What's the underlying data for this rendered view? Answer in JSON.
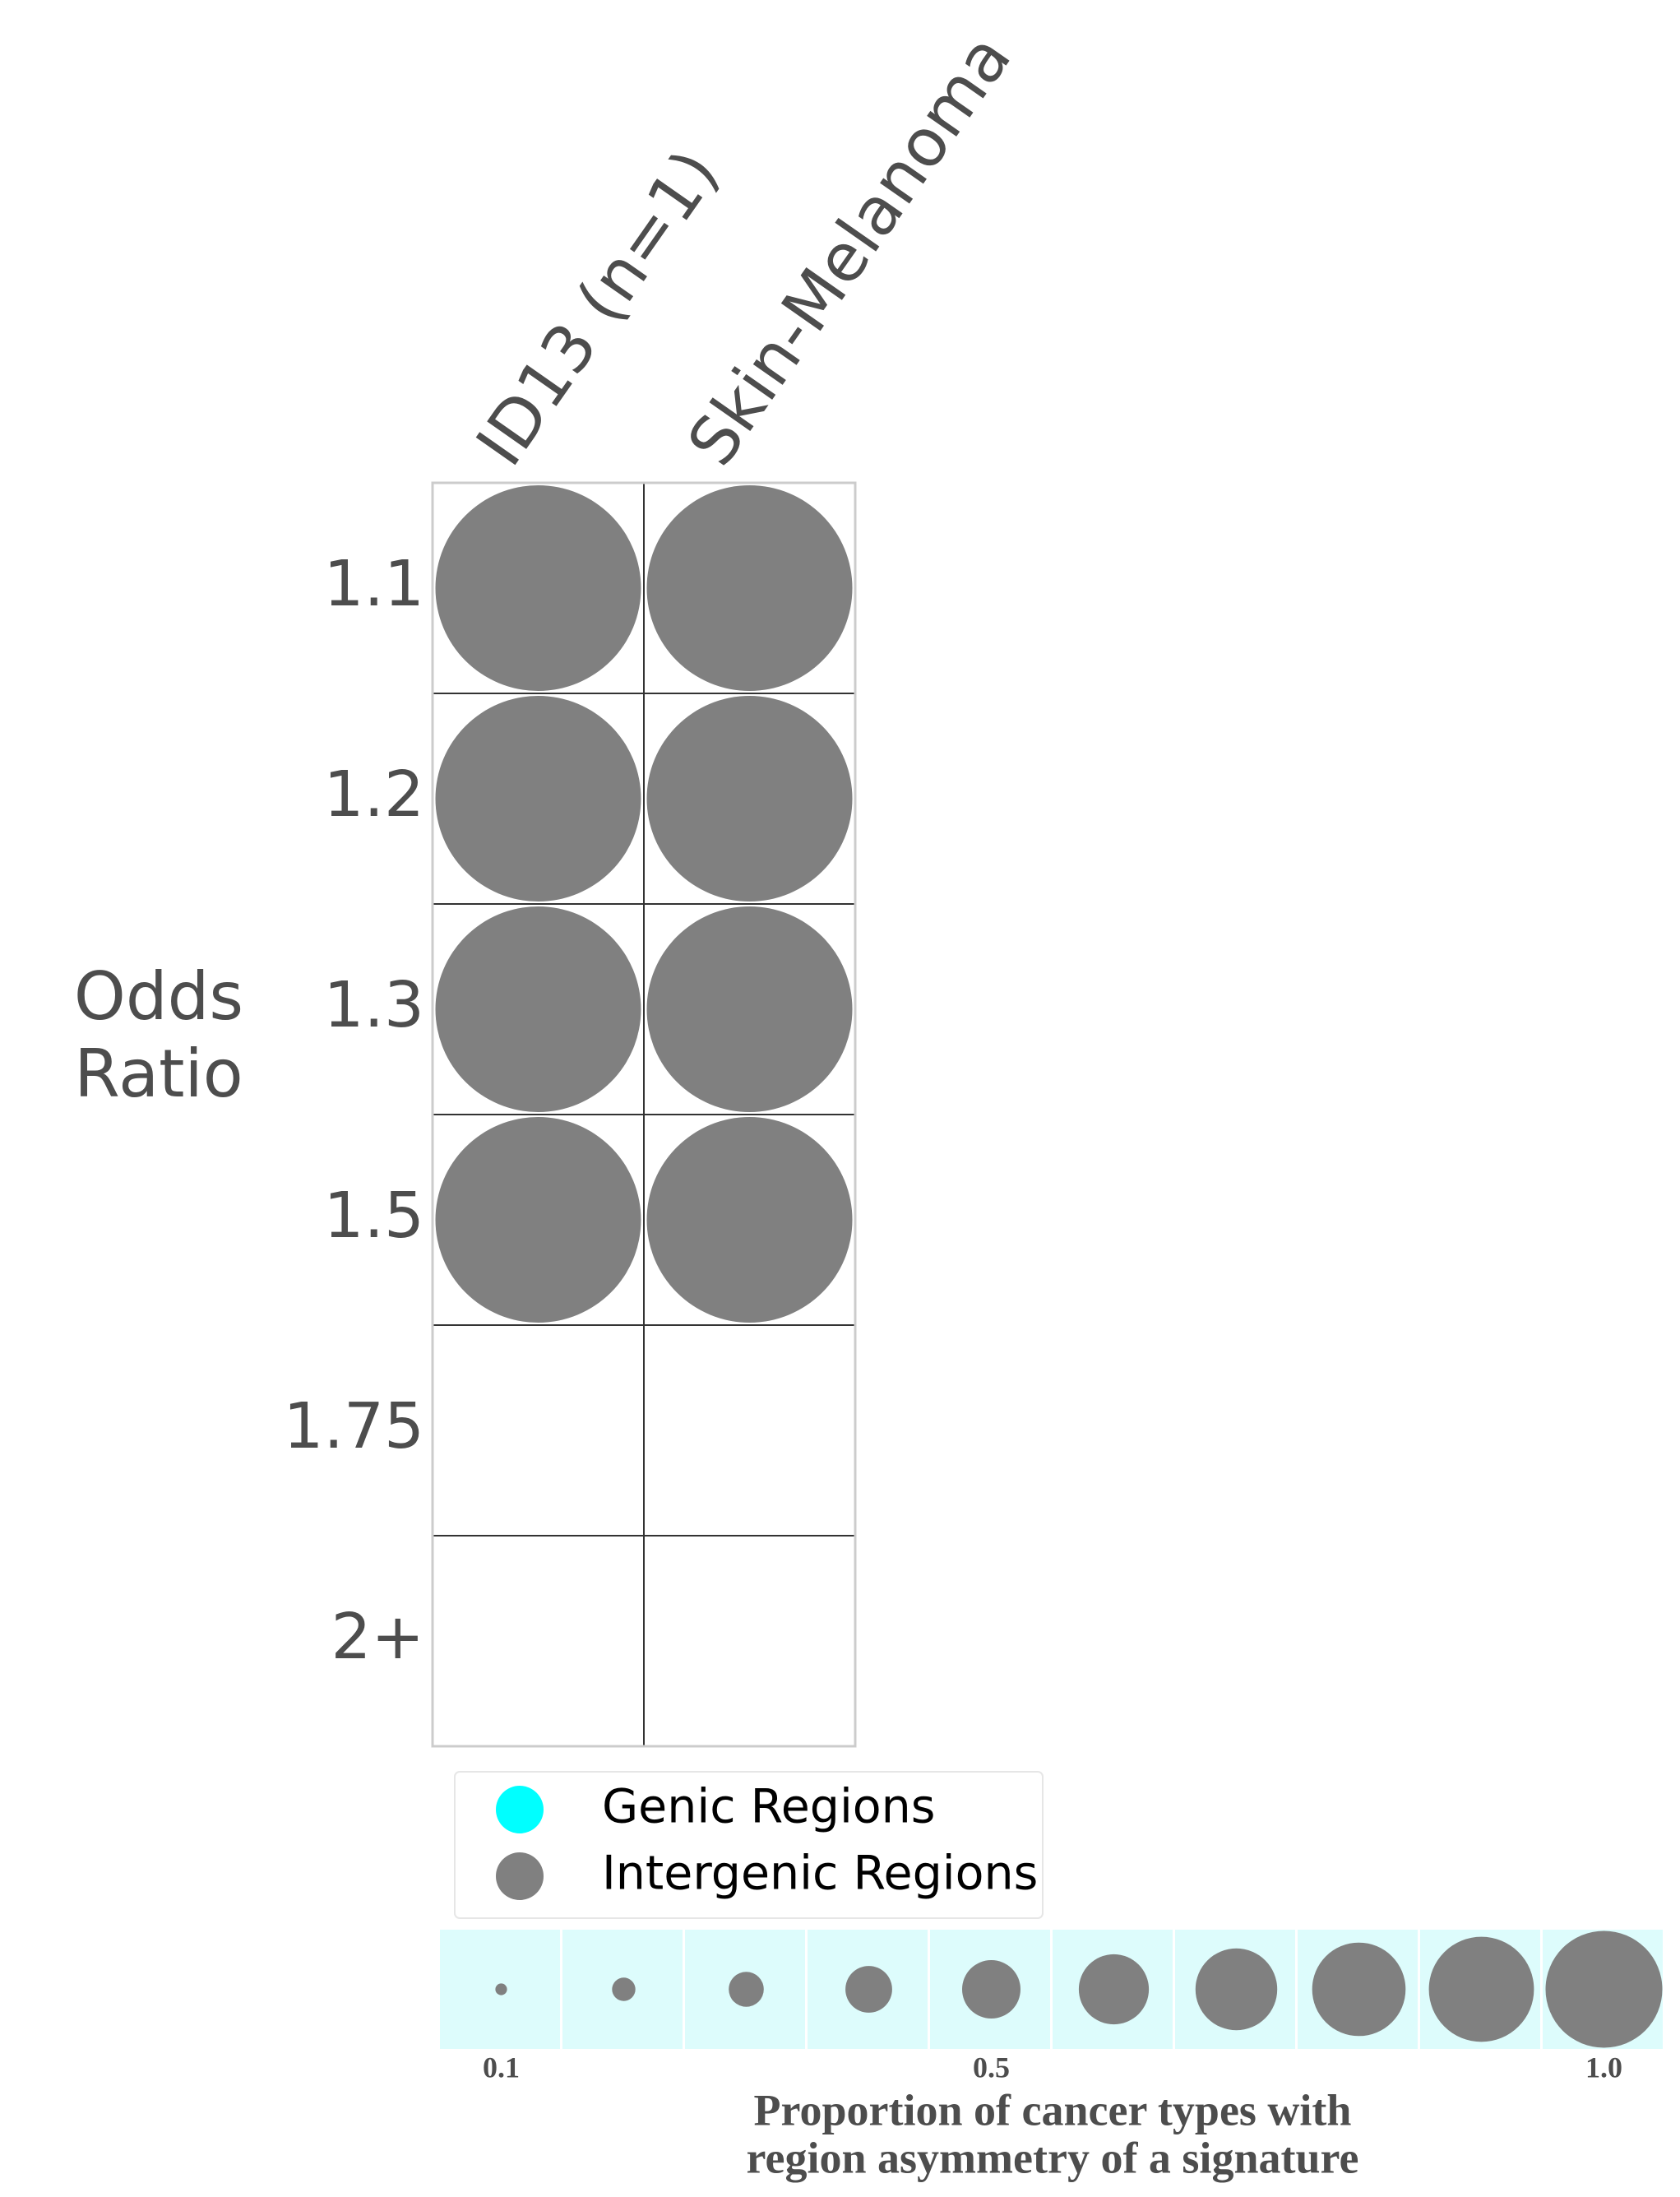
{
  "chart_data": {
    "type": "bubble_grid",
    "columns": [
      "ID13 (n=1)",
      "Skin-Melanoma"
    ],
    "categories": [
      "1.1",
      "1.2",
      "1.3",
      "1.5",
      "1.75",
      "2+"
    ],
    "y_label_lines": [
      "Odds",
      "Ratio"
    ],
    "series": [
      {
        "name": "Genic Regions",
        "color": "#00ffff",
        "values": [
          [
            null,
            null
          ],
          [
            null,
            null
          ],
          [
            null,
            null
          ],
          [
            null,
            null
          ],
          [
            null,
            null
          ],
          [
            null,
            null
          ]
        ]
      },
      {
        "name": "Intergenic Regions",
        "color": "#808080",
        "values": [
          [
            1,
            1
          ],
          [
            1,
            1
          ],
          [
            1,
            1
          ],
          [
            1,
            1
          ],
          [
            null,
            null
          ],
          [
            null,
            null
          ]
        ]
      }
    ],
    "size_legend": {
      "values": [
        0.1,
        0.2,
        0.3,
        0.4,
        0.5,
        0.6,
        0.7,
        0.8,
        0.9,
        1.0
      ],
      "ticks": [
        0.1,
        0.5,
        {
          "value": 1,
          "label": "1.0"
        }
      ],
      "background": "#ddfcfc",
      "title_lines": [
        "Proportion of cancer types with",
        "region asymmetry of a signature"
      ]
    }
  }
}
